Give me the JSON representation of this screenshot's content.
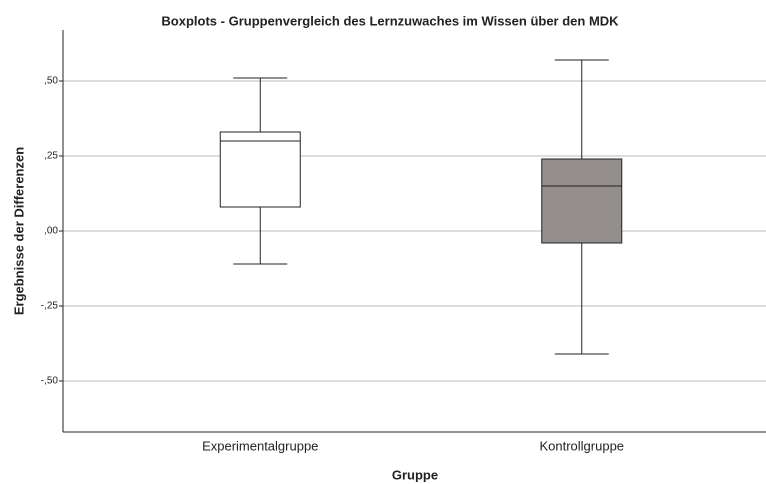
{
  "chart_data": {
    "type": "boxplot",
    "title": "Boxplots - Gruppenvergleich des Lernzuwaches im Wissen über den MDK",
    "x_label": "Gruppe",
    "y_label": "Ergebnisse der Differenzen",
    "categories": [
      "Experimentalgruppe",
      "Kontrollgruppe"
    ],
    "values": [
      {
        "min": -0.11,
        "q1": 0.08,
        "median": 0.3,
        "q3": 0.33,
        "max": 0.51
      },
      {
        "min": -0.41,
        "q1": -0.04,
        "median": 0.15,
        "q3": 0.24,
        "max": 0.57
      }
    ],
    "colors": [
      "#ffffff",
      "#948f8c"
    ],
    "ylim": [
      -0.67,
      0.67
    ],
    "yticks": [
      {
        "value": -0.5,
        "label": "-,50"
      },
      {
        "value": -0.25,
        "label": "-,25"
      },
      {
        "value": 0,
        "label": ",00"
      },
      {
        "value": 0.25,
        "label": ",25"
      },
      {
        "value": 0.5,
        "label": ",50"
      }
    ],
    "grid": true
  }
}
